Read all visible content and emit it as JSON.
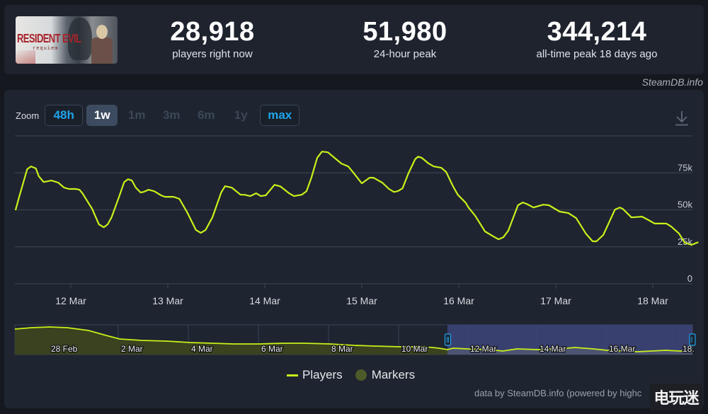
{
  "header": {
    "game_title_art": "RESIDENT EVIL",
    "game_subtitle_art": "requiem",
    "stats": [
      {
        "value": "28,918",
        "label": "players right now"
      },
      {
        "value": "51,980",
        "label": "24-hour peak"
      },
      {
        "value": "344,214",
        "label": "all-time peak 18 days ago"
      }
    ],
    "credit": "SteamDB.info"
  },
  "toolbar": {
    "zoom_label": "Zoom",
    "buttons": [
      {
        "label": "48h",
        "state": "enabled"
      },
      {
        "label": "1w",
        "state": "active"
      },
      {
        "label": "1m",
        "state": "disabled"
      },
      {
        "label": "3m",
        "state": "disabled"
      },
      {
        "label": "6m",
        "state": "disabled"
      },
      {
        "label": "1y",
        "state": "disabled"
      },
      {
        "label": "max",
        "state": "enabled"
      }
    ],
    "download_icon": "download-icon"
  },
  "legend": {
    "players": "Players",
    "markers": "Markers"
  },
  "footer": {
    "credit": "data by SteamDB.info (powered by highc",
    "watermark": "电玩迷"
  },
  "colors": {
    "line": "#c9f01a",
    "accent_blue": "#1ea4ea",
    "navigator_fill": "#3b4220",
    "navigator_selection": "#3c4479",
    "background": "#1e2430"
  },
  "chart_data": {
    "type": "line",
    "title": "",
    "xlabel": "",
    "ylabel": "",
    "ylim": [
      0,
      100000
    ],
    "y_ticks": [
      {
        "value": 0,
        "label": "0"
      },
      {
        "value": 25000,
        "label": "25k"
      },
      {
        "value": 50000,
        "label": "50k"
      },
      {
        "value": 75000,
        "label": "75k"
      },
      {
        "value": 100000,
        "label": ""
      }
    ],
    "x_ticks": [
      "12 Mar",
      "13 Mar",
      "14 Mar",
      "15 Mar",
      "16 Mar",
      "17 Mar",
      "18 Mar"
    ],
    "grid": true,
    "legend_position": "bottom",
    "series": [
      {
        "name": "Players",
        "note": "x in days from 12 Mar 00:00 (negative = 11 Mar); y = concurrent players (approx)",
        "points": [
          [
            -0.57,
            49700
          ],
          [
            -0.53,
            59300
          ],
          [
            -0.45,
            77500
          ],
          [
            -0.41,
            79400
          ],
          [
            -0.36,
            78000
          ],
          [
            -0.33,
            72700
          ],
          [
            -0.28,
            68800
          ],
          [
            -0.2,
            69800
          ],
          [
            -0.13,
            68400
          ],
          [
            -0.07,
            65000
          ],
          [
            -0.02,
            64100
          ],
          [
            0.05,
            64100
          ],
          [
            0.09,
            63600
          ],
          [
            0.12,
            61200
          ],
          [
            0.22,
            50700
          ],
          [
            0.29,
            40200
          ],
          [
            0.34,
            38200
          ],
          [
            0.38,
            40200
          ],
          [
            0.42,
            44900
          ],
          [
            0.5,
            59300
          ],
          [
            0.55,
            68800
          ],
          [
            0.59,
            70700
          ],
          [
            0.63,
            69800
          ],
          [
            0.67,
            65000
          ],
          [
            0.72,
            61700
          ],
          [
            0.75,
            62100
          ],
          [
            0.8,
            63600
          ],
          [
            0.86,
            62600
          ],
          [
            0.93,
            59800
          ],
          [
            0.97,
            58800
          ],
          [
            1.06,
            58800
          ],
          [
            1.12,
            57400
          ],
          [
            1.2,
            48300
          ],
          [
            1.29,
            36400
          ],
          [
            1.34,
            34400
          ],
          [
            1.39,
            36400
          ],
          [
            1.46,
            44900
          ],
          [
            1.55,
            61700
          ],
          [
            1.59,
            66000
          ],
          [
            1.66,
            65000
          ],
          [
            1.75,
            60200
          ],
          [
            1.79,
            60200
          ],
          [
            1.85,
            59300
          ],
          [
            1.91,
            61200
          ],
          [
            1.96,
            59300
          ],
          [
            2.01,
            59800
          ],
          [
            2.1,
            66900
          ],
          [
            2.16,
            65900
          ],
          [
            2.25,
            61200
          ],
          [
            2.3,
            59300
          ],
          [
            2.38,
            60200
          ],
          [
            2.43,
            62600
          ],
          [
            2.48,
            71700
          ],
          [
            2.54,
            85100
          ],
          [
            2.59,
            89400
          ],
          [
            2.65,
            88900
          ],
          [
            2.72,
            85100
          ],
          [
            2.79,
            81300
          ],
          [
            2.86,
            79400
          ],
          [
            2.92,
            74600
          ],
          [
            3.0,
            67900
          ],
          [
            3.08,
            71700
          ],
          [
            3.12,
            71700
          ],
          [
            3.21,
            68400
          ],
          [
            3.28,
            64100
          ],
          [
            3.33,
            62100
          ],
          [
            3.37,
            62600
          ],
          [
            3.42,
            64500
          ],
          [
            3.48,
            74600
          ],
          [
            3.55,
            84200
          ],
          [
            3.58,
            86000
          ],
          [
            3.62,
            85100
          ],
          [
            3.69,
            81300
          ],
          [
            3.74,
            79400
          ],
          [
            3.82,
            78400
          ],
          [
            3.87,
            75600
          ],
          [
            3.94,
            66000
          ],
          [
            3.99,
            60200
          ],
          [
            4.07,
            54900
          ],
          [
            4.1,
            51600
          ],
          [
            4.17,
            45900
          ],
          [
            4.27,
            35400
          ],
          [
            4.37,
            31500
          ],
          [
            4.41,
            30100
          ],
          [
            4.46,
            31500
          ],
          [
            4.51,
            35900
          ],
          [
            4.61,
            53100
          ],
          [
            4.66,
            55000
          ],
          [
            4.7,
            54000
          ],
          [
            4.77,
            51600
          ],
          [
            4.87,
            53500
          ],
          [
            4.93,
            53100
          ],
          [
            5.04,
            48800
          ],
          [
            5.13,
            47800
          ],
          [
            5.21,
            44400
          ],
          [
            5.31,
            33900
          ],
          [
            5.38,
            28700
          ],
          [
            5.42,
            28700
          ],
          [
            5.49,
            33000
          ],
          [
            5.61,
            50200
          ],
          [
            5.66,
            51600
          ],
          [
            5.69,
            50700
          ],
          [
            5.78,
            44900
          ],
          [
            5.89,
            45400
          ],
          [
            5.97,
            42600
          ],
          [
            6.02,
            40700
          ],
          [
            6.14,
            40700
          ],
          [
            6.19,
            38700
          ],
          [
            6.27,
            34000
          ],
          [
            6.33,
            27700
          ],
          [
            6.4,
            26300
          ],
          [
            6.47,
            28200
          ]
        ]
      }
    ],
    "navigator": {
      "x_ticks": [
        "28 Feb",
        "2 Mar",
        "4 Mar",
        "6 Mar",
        "8 Mar",
        "10 Mar",
        "12 Mar",
        "14 Mar",
        "16 Mar",
        "18."
      ],
      "selected_range": [
        "11 Mar",
        "18 Mar"
      ]
    }
  }
}
